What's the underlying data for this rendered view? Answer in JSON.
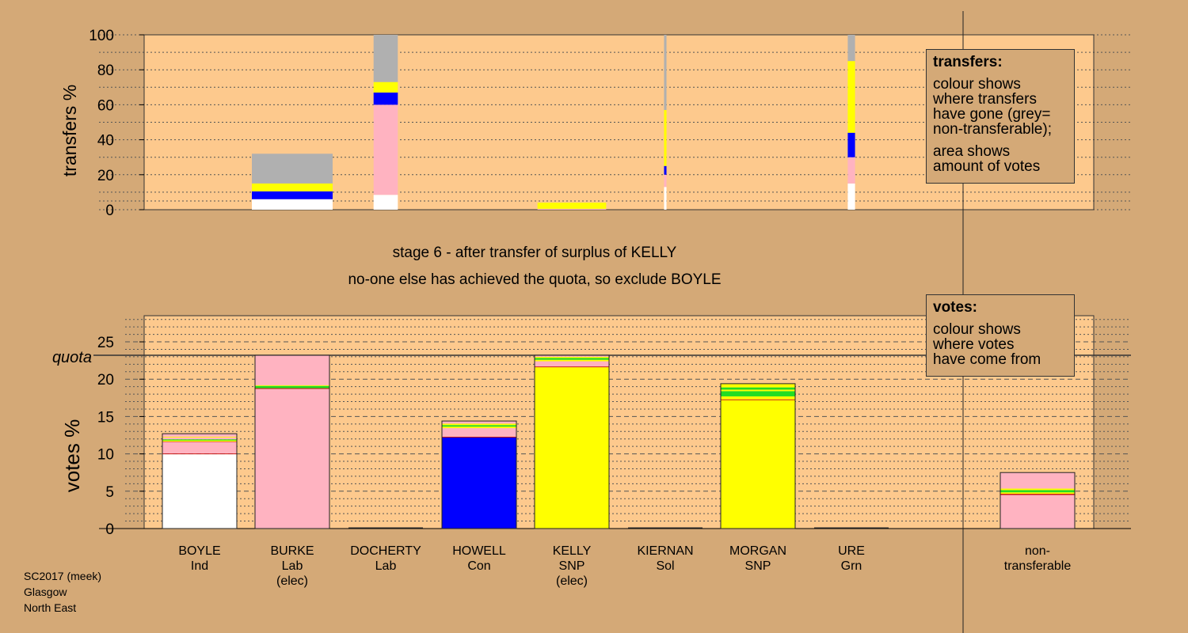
{
  "stage_text": {
    "line1": "stage 6 - after transfer of surplus of KELLY",
    "line2": "no-one else has achieved the quota, so exclude BOYLE"
  },
  "legends": {
    "transfers": {
      "title": "transfers:",
      "lines": [
        "colour shows",
        "where transfers",
        "have gone (grey=",
        "non-transferable);"
      ],
      "lines2": [
        "area shows",
        "amount of votes"
      ]
    },
    "votes": {
      "title": "votes:",
      "lines": [
        "colour shows",
        "where votes",
        "have come from"
      ]
    }
  },
  "footer": {
    "line1": "SC2017 (meek)",
    "line2": "Glasgow",
    "line3": "North East"
  },
  "colors": {
    "background": "#d4a977",
    "plot": "#fdc98d",
    "Ind": "#ffffff",
    "Lab": "#ffb3c1",
    "Con": "#0000ff",
    "SNP": "#ffff00",
    "Grn": "#22dd22",
    "Sol": "#c00000",
    "nontransferable": "#b0b0b0"
  },
  "chart_data": [
    {
      "name": "transfers",
      "type": "bar",
      "ylabel": "transfers %",
      "ylim": [
        0,
        100
      ],
      "yticks": [
        0,
        20,
        40,
        60,
        80,
        100
      ],
      "columns": [
        {
          "candidate": "BOYLE",
          "width_pct": 0,
          "segments": []
        },
        {
          "candidate": "BURKE",
          "width_pct": 100,
          "segments": [
            {
              "to": "Ind",
              "value": 6
            },
            {
              "to": "Con",
              "value": 4.5
            },
            {
              "to": "SNP",
              "value": 4.5
            },
            {
              "to": "nontransferable",
              "value": 17
            }
          ]
        },
        {
          "candidate": "DOCHERTY",
          "width_pct": 30,
          "segments": [
            {
              "to": "Ind",
              "value": 8.5
            },
            {
              "to": "Lab",
              "value": 51.5
            },
            {
              "to": "Con",
              "value": 7
            },
            {
              "to": "SNP",
              "value": 6
            },
            {
              "to": "nontransferable",
              "value": 27
            }
          ]
        },
        {
          "candidate": "HOWELL",
          "width_pct": 0,
          "segments": []
        },
        {
          "candidate": "KELLY",
          "width_pct": 85,
          "segments": [
            {
              "to": "Lab",
              "value": 0.5
            },
            {
              "to": "SNP",
              "value": 3.5
            }
          ]
        },
        {
          "candidate": "KIERNAN",
          "width_pct": 3,
          "segments": [
            {
              "to": "Ind",
              "value": 13
            },
            {
              "to": "Lab",
              "value": 7
            },
            {
              "to": "Con",
              "value": 5
            },
            {
              "to": "SNP",
              "value": 32
            },
            {
              "to": "nontransferable",
              "value": 43
            }
          ]
        },
        {
          "candidate": "MORGAN",
          "width_pct": 0,
          "segments": []
        },
        {
          "candidate": "URE",
          "width_pct": 9,
          "segments": [
            {
              "to": "Ind",
              "value": 15
            },
            {
              "to": "Lab",
              "value": 15
            },
            {
              "to": "Con",
              "value": 14
            },
            {
              "to": "SNP",
              "value": 41
            },
            {
              "to": "nontransferable",
              "value": 15
            }
          ]
        }
      ]
    },
    {
      "name": "votes",
      "type": "bar",
      "ylabel": "votes %",
      "ylim": [
        0,
        28.5
      ],
      "yticks": [
        0,
        5,
        10,
        15,
        20,
        25
      ],
      "quota": 23.2,
      "quota_label": "quota",
      "columns": [
        {
          "candidate": "BOYLE",
          "party": "Ind",
          "elected": "",
          "segments": [
            {
              "from": "Ind",
              "value": 9.95
            },
            {
              "from": "Sol",
              "value": 0.1
            },
            {
              "from": "Lab",
              "value": 1.55
            },
            {
              "from": "Sol",
              "value": 0.05
            },
            {
              "from": "SNP",
              "value": 0.15
            },
            {
              "from": "Grn",
              "value": 0.15
            },
            {
              "from": "Lab",
              "value": 0.25
            },
            {
              "from": "SNP",
              "value": 0.1
            },
            {
              "from": "Lab",
              "value": 0.4
            }
          ]
        },
        {
          "candidate": "BURKE",
          "party": "Lab",
          "elected": "(elec)",
          "segments": [
            {
              "from": "Lab",
              "value": 18.7
            },
            {
              "from": "Sol",
              "value": 0.1
            },
            {
              "from": "Grn",
              "value": 0.3
            },
            {
              "from": "SNP",
              "value": 0.1
            },
            {
              "from": "Lab",
              "value": 4.0
            }
          ]
        },
        {
          "candidate": "DOCHERTY",
          "party": "Lab",
          "elected": "",
          "segments": []
        },
        {
          "candidate": "HOWELL",
          "party": "Con",
          "elected": "",
          "segments": [
            {
              "from": "Con",
              "value": 12.2
            },
            {
              "from": "Sol",
              "value": 0.1
            },
            {
              "from": "Lab",
              "value": 1.15
            },
            {
              "from": "SNP",
              "value": 0.2
            },
            {
              "from": "Grn",
              "value": 0.2
            },
            {
              "from": "SNP",
              "value": 0.2
            },
            {
              "from": "Lab",
              "value": 0.35
            }
          ]
        },
        {
          "candidate": "KELLY",
          "party": "SNP",
          "elected": "(elec)",
          "segments": [
            {
              "from": "SNP",
              "value": 21.6
            },
            {
              "from": "Sol",
              "value": 0.1
            },
            {
              "from": "Lab",
              "value": 0.7
            },
            {
              "from": "SNP",
              "value": 0.2
            },
            {
              "from": "Grn",
              "value": 0.25
            },
            {
              "from": "SNP",
              "value": 0.15
            },
            {
              "from": "Lab",
              "value": 0.2
            }
          ]
        },
        {
          "candidate": "KIERNAN",
          "party": "Sol",
          "elected": "",
          "segments": []
        },
        {
          "candidate": "MORGAN",
          "party": "SNP",
          "elected": "",
          "segments": [
            {
              "from": "SNP",
              "value": 17.2
            },
            {
              "from": "Sol",
              "value": 0.1
            },
            {
              "from": "SNP",
              "value": 0.4
            },
            {
              "from": "Grn",
              "value": 0.7
            },
            {
              "from": "SNP",
              "value": 0.2
            },
            {
              "from": "Grn",
              "value": 0.3
            },
            {
              "from": "SNP",
              "value": 0.5
            }
          ]
        },
        {
          "candidate": "URE",
          "party": "Grn",
          "elected": "",
          "segments": []
        },
        {
          "candidate": "non-\ntransferable",
          "party": "",
          "elected": "",
          "segments": [
            {
              "from": "Lab",
              "value": 4.5
            },
            {
              "from": "Sol",
              "value": 0.15
            },
            {
              "from": "SNP",
              "value": 0.2
            },
            {
              "from": "Grn",
              "value": 0.3
            },
            {
              "from": "SNP",
              "value": 0.2
            },
            {
              "from": "Lab",
              "value": 2.15
            }
          ]
        }
      ]
    }
  ]
}
